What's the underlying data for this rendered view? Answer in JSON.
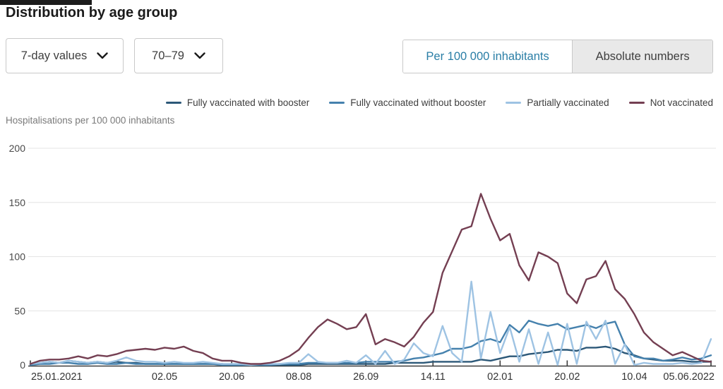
{
  "header": {
    "title": "Distribution by age group"
  },
  "filters": {
    "time_interval": {
      "value": "7-day values",
      "icon": "chevron-down-icon"
    },
    "age_group": {
      "value": "70–79",
      "icon": "chevron-down-icon"
    }
  },
  "unit_toggle": {
    "options": [
      {
        "label": "Per 100 000 inhabitants",
        "selected": true
      },
      {
        "label": "Absolute numbers",
        "selected": false
      }
    ],
    "active_text_color": "#2a7ea6",
    "inactive_bg_color": "#e9e9e9"
  },
  "chart_data": {
    "type": "line",
    "ylabel": "Hospitalisations per 100 000 inhabitants",
    "ylim": [
      0,
      200
    ],
    "y_ticks": [
      0,
      50,
      100,
      150,
      200
    ],
    "grid": "horizontal",
    "legend_position": "top-right",
    "x_unit": "weeks since 25.01.2021",
    "x_weeks_total": 71,
    "x_ticks": [
      {
        "week": 0,
        "label": "25.01.2021"
      },
      {
        "week": 14,
        "label": "02.05"
      },
      {
        "week": 21,
        "label": "20.06"
      },
      {
        "week": 28,
        "label": "08.08"
      },
      {
        "week": 35,
        "label": "26.09"
      },
      {
        "week": 42,
        "label": "14.11"
      },
      {
        "week": 49,
        "label": "02.01"
      },
      {
        "week": 56,
        "label": "20.02"
      },
      {
        "week": 63,
        "label": "10.04"
      },
      {
        "week": 71,
        "label": "05.06.2022"
      }
    ],
    "series": [
      {
        "name": "Fully vaccinated with booster",
        "color": "#2c5878",
        "values": [
          1,
          2,
          3,
          2,
          4,
          3,
          2,
          3,
          2,
          3,
          2,
          2,
          1,
          1,
          1,
          1,
          1,
          1,
          1,
          1,
          1,
          0,
          0,
          0,
          0,
          0,
          0,
          0,
          0,
          1,
          1,
          1,
          1,
          1,
          1,
          1,
          1,
          1,
          2,
          2,
          2,
          2,
          3,
          3,
          3,
          3,
          3,
          5,
          4,
          6,
          8,
          8,
          10,
          11,
          12,
          14,
          14,
          13,
          16,
          16,
          17,
          15,
          11,
          9,
          6,
          5,
          4,
          4,
          4,
          3,
          3,
          3
        ]
      },
      {
        "name": "Fully vaccinated without booster",
        "color": "#4581ad",
        "values": [
          0,
          1,
          1,
          2,
          2,
          1,
          1,
          2,
          1,
          1,
          2,
          1,
          1,
          1,
          1,
          1,
          1,
          1,
          1,
          1,
          0,
          0,
          0,
          0,
          0,
          0,
          1,
          1,
          1,
          2,
          2,
          2,
          2,
          2,
          2,
          3,
          3,
          3,
          3,
          4,
          6,
          7,
          9,
          11,
          15,
          15,
          17,
          22,
          24,
          21,
          37,
          30,
          41,
          38,
          36,
          38,
          33,
          35,
          37,
          34,
          38,
          40,
          19,
          8,
          6,
          6,
          4,
          5,
          7,
          5,
          6,
          9
        ]
      },
      {
        "name": "Partially vaccinated",
        "color": "#9ec3e3",
        "values": [
          1,
          2,
          3,
          2,
          4,
          3,
          2,
          3,
          2,
          4,
          7,
          4,
          3,
          3,
          2,
          3,
          2,
          2,
          3,
          2,
          1,
          1,
          1,
          0,
          1,
          1,
          1,
          2,
          2,
          10,
          3,
          2,
          2,
          4,
          2,
          9,
          1,
          13,
          1,
          5,
          20,
          11,
          8,
          36,
          11,
          3,
          77,
          6,
          49,
          11,
          35,
          3,
          33,
          1,
          30,
          0,
          38,
          1,
          40,
          24,
          41,
          1,
          19,
          0,
          2,
          1,
          1,
          1,
          2,
          1,
          2,
          24
        ]
      },
      {
        "name": "Not vaccinated",
        "color": "#743f52",
        "values": [
          1,
          4,
          5,
          5,
          6,
          8,
          6,
          9,
          8,
          10,
          13,
          14,
          15,
          14,
          16,
          15,
          17,
          13,
          11,
          6,
          4,
          4,
          2,
          1,
          1,
          2,
          4,
          8,
          14,
          25,
          35,
          42,
          38,
          33,
          35,
          47,
          19,
          24,
          21,
          17,
          26,
          39,
          49,
          85,
          105,
          125,
          128,
          158,
          135,
          115,
          121,
          92,
          78,
          104,
          100,
          94,
          66,
          57,
          79,
          82,
          96,
          70,
          61,
          47,
          30,
          21,
          15,
          9,
          12,
          8,
          4,
          3
        ]
      }
    ]
  }
}
